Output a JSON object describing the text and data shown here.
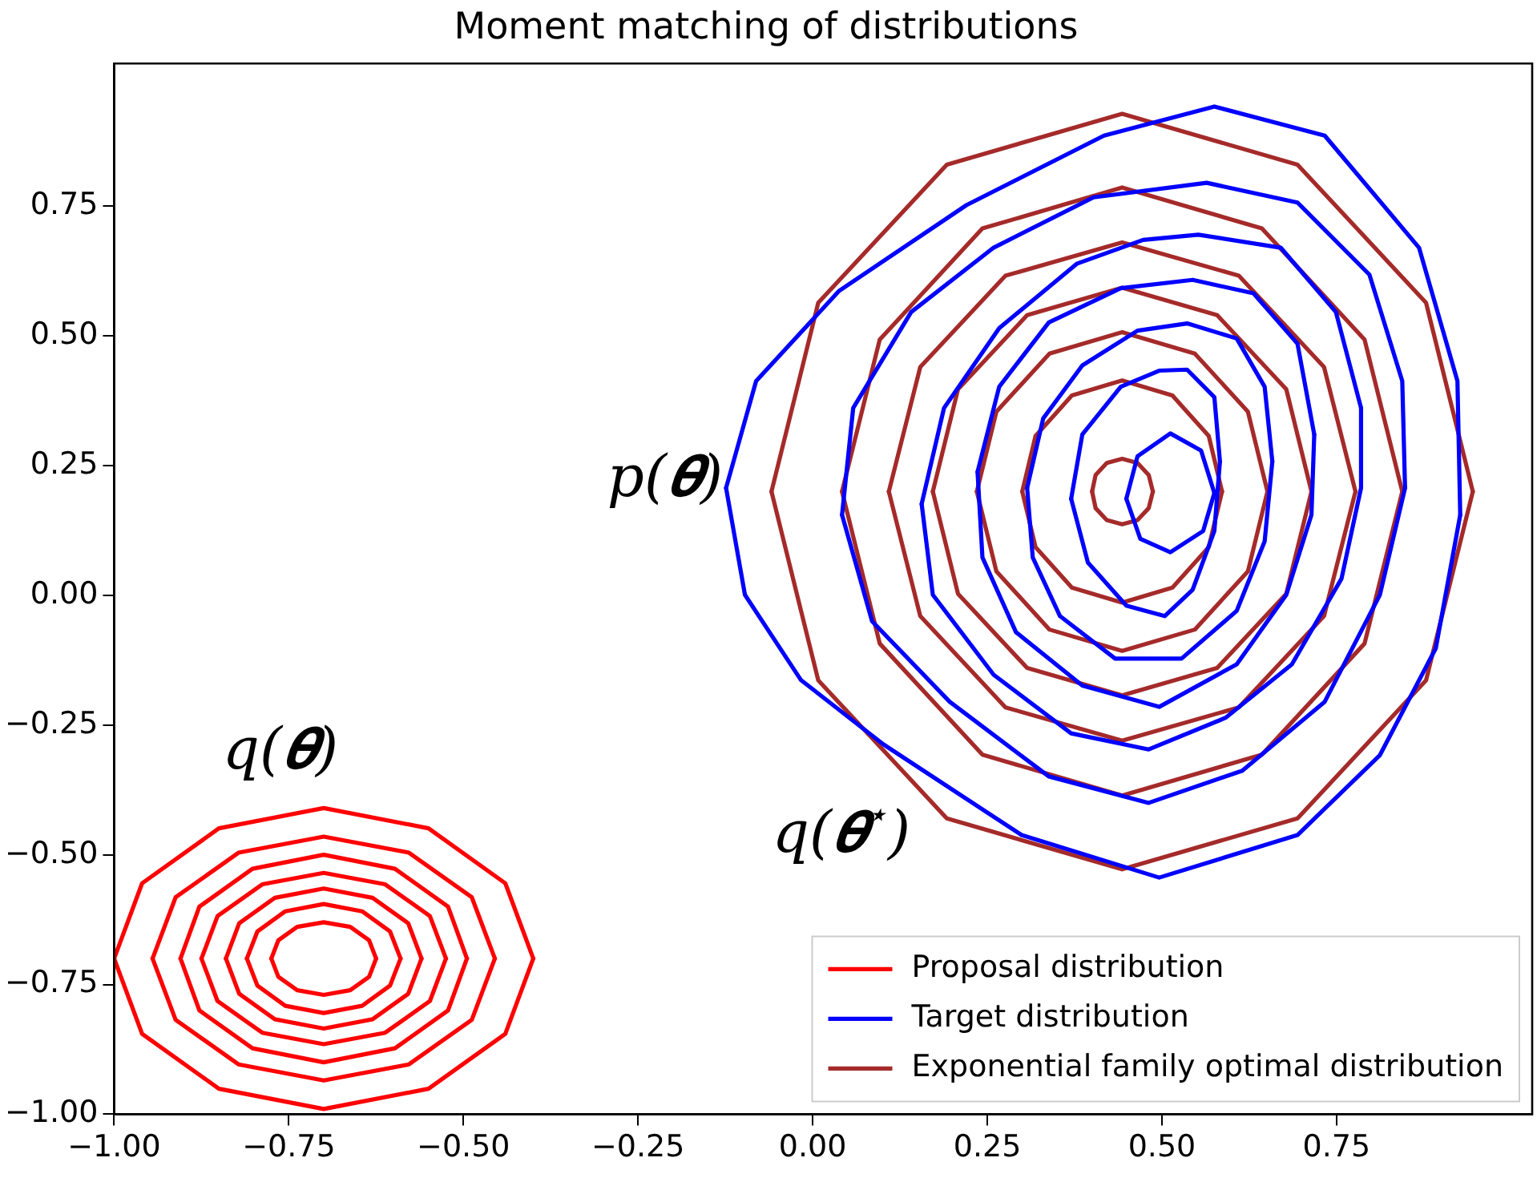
{
  "chart_data": {
    "type": "line",
    "title": "Moment matching of distributions",
    "xlim": [
      -1.0,
      1.03
    ],
    "ylim": [
      -1.0,
      1.025
    ],
    "xticks": [
      {
        "value": -1,
        "label": "−1.00"
      },
      {
        "value": -0.75,
        "label": "−0.75"
      },
      {
        "value": -0.5,
        "label": "−0.50"
      },
      {
        "value": -0.25,
        "label": "−0.25"
      },
      {
        "value": 0,
        "label": "0.00"
      },
      {
        "value": 0.25,
        "label": "0.25"
      },
      {
        "value": 0.5,
        "label": "0.50"
      },
      {
        "value": 0.75,
        "label": "0.75"
      }
    ],
    "yticks": [
      {
        "value": -1,
        "label": "−1.00"
      },
      {
        "value": -0.75,
        "label": "−0.75"
      },
      {
        "value": -0.5,
        "label": "−0.50"
      },
      {
        "value": -0.25,
        "label": "−0.25"
      },
      {
        "value": 0,
        "label": "0.00"
      },
      {
        "value": 0.25,
        "label": "0.25"
      },
      {
        "value": 0.5,
        "label": "0.50"
      },
      {
        "value": 0.75,
        "label": "0.75"
      }
    ],
    "legend": "bottom right",
    "grid": false,
    "line_style": "solid",
    "annotations": [
      "p(𝜽)",
      "q(𝜽)",
      "q(𝜽$^{⋆}$)"
    ],
    "series": [
      {
        "name": "Proposal distribution",
        "color": "#ff0000",
        "x": [
          -0.4,
          -0.44,
          -0.55,
          -0.7,
          -0.85,
          -0.96,
          -1.0,
          -0.96,
          -0.85,
          -0.7,
          -0.55,
          -0.44,
          -0.4
        ],
        "values": [
          -0.7,
          -0.555,
          -0.449,
          -0.41,
          -0.449,
          -0.555,
          -0.7,
          -0.845,
          -0.951,
          -0.99,
          -0.951,
          -0.845,
          -0.7
        ]
      },
      {
        "color": "#ff0000",
        "x": [
          -0.455,
          -0.488,
          -0.578,
          -0.7,
          -0.822,
          -0.912,
          -0.945,
          -0.912,
          -0.822,
          -0.7,
          -0.578,
          -0.488,
          -0.455
        ],
        "values": [
          -0.7,
          -0.582,
          -0.496,
          -0.465,
          -0.496,
          -0.582,
          -0.7,
          -0.818,
          -0.904,
          -0.935,
          -0.904,
          -0.818,
          -0.7
        ]
      },
      {
        "color": "#ff0000",
        "x": [
          -0.495,
          -0.522,
          -0.598,
          -0.7,
          -0.802,
          -0.878,
          -0.905,
          -0.878,
          -0.802,
          -0.7,
          -0.598,
          -0.522,
          -0.495
        ],
        "values": [
          -0.7,
          -0.6,
          -0.527,
          -0.5,
          -0.527,
          -0.6,
          -0.7,
          -0.8,
          -0.873,
          -0.9,
          -0.873,
          -0.8,
          -0.7
        ]
      },
      {
        "color": "#ff0000",
        "x": [
          -0.525,
          -0.548,
          -0.612,
          -0.7,
          -0.788,
          -0.852,
          -0.875,
          -0.852,
          -0.788,
          -0.7,
          -0.612,
          -0.548,
          -0.525
        ],
        "values": [
          -0.7,
          -0.618,
          -0.557,
          -0.535,
          -0.557,
          -0.618,
          -0.7,
          -0.782,
          -0.843,
          -0.865,
          -0.843,
          -0.782,
          -0.7
        ]
      },
      {
        "color": "#ff0000",
        "x": [
          -0.56,
          -0.579,
          -0.63,
          -0.7,
          -0.77,
          -0.821,
          -0.84,
          -0.821,
          -0.77,
          -0.7,
          -0.63,
          -0.579,
          -0.56
        ],
        "values": [
          -0.7,
          -0.632,
          -0.583,
          -0.565,
          -0.583,
          -0.632,
          -0.7,
          -0.768,
          -0.817,
          -0.835,
          -0.817,
          -0.768,
          -0.7
        ]
      },
      {
        "color": "#ff0000",
        "x": [
          -0.59,
          -0.605,
          -0.645,
          -0.7,
          -0.755,
          -0.795,
          -0.81,
          -0.795,
          -0.755,
          -0.7,
          -0.645,
          -0.605,
          -0.59
        ],
        "values": [
          -0.7,
          -0.648,
          -0.609,
          -0.595,
          -0.609,
          -0.648,
          -0.7,
          -0.752,
          -0.791,
          -0.805,
          -0.791,
          -0.752,
          -0.7
        ]
      },
      {
        "color": "#ff0000",
        "x": [
          -0.625,
          -0.635,
          -0.662,
          -0.7,
          -0.738,
          -0.765,
          -0.775,
          -0.765,
          -0.738,
          -0.7,
          -0.662,
          -0.635,
          -0.625
        ],
        "values": [
          -0.7,
          -0.665,
          -0.639,
          -0.63,
          -0.639,
          -0.665,
          -0.7,
          -0.735,
          -0.761,
          -0.77,
          -0.761,
          -0.735,
          -0.7
        ]
      },
      {
        "name": "Target distribution",
        "color": "#0000ff",
        "x": [
          0.575,
          0.733,
          0.868,
          0.923,
          0.927,
          0.892,
          0.812,
          0.694,
          0.496,
          0.299,
          0.101,
          -0.017,
          -0.097,
          -0.124,
          -0.081,
          0.038,
          0.22,
          0.417,
          0.575
        ],
        "values": [
          0.942,
          0.886,
          0.67,
          0.413,
          0.155,
          -0.102,
          -0.308,
          -0.462,
          -0.544,
          -0.462,
          -0.287,
          -0.163,
          0.001,
          0.207,
          0.413,
          0.587,
          0.752,
          0.886,
          0.942
        ]
      },
      {
        "color": "#0000ff",
        "x": [
          0.564,
          0.694,
          0.797,
          0.844,
          0.848,
          0.812,
          0.733,
          0.615,
          0.481,
          0.338,
          0.196,
          0.085,
          0.042,
          0.058,
          0.141,
          0.259,
          0.402,
          0.564
        ],
        "values": [
          0.795,
          0.757,
          0.618,
          0.413,
          0.207,
          0.001,
          -0.205,
          -0.338,
          -0.4,
          -0.349,
          -0.205,
          -0.05,
          0.155,
          0.361,
          0.546,
          0.67,
          0.767,
          0.795
        ]
      },
      {
        "color": "#0000ff",
        "x": [
          0.552,
          0.67,
          0.749,
          0.785,
          0.785,
          0.757,
          0.686,
          0.591,
          0.481,
          0.37,
          0.259,
          0.172,
          0.156,
          0.188,
          0.267,
          0.378,
          0.473,
          0.552
        ],
        "values": [
          0.695,
          0.67,
          0.546,
          0.361,
          0.207,
          0.032,
          -0.133,
          -0.236,
          -0.297,
          -0.266,
          -0.153,
          0.001,
          0.176,
          0.361,
          0.515,
          0.639,
          0.685,
          0.695
        ]
      },
      {
        "color": "#0000ff",
        "x": [
          0.544,
          0.631,
          0.694,
          0.718,
          0.714,
          0.678,
          0.607,
          0.496,
          0.386,
          0.291,
          0.243,
          0.236,
          0.267,
          0.338,
          0.441,
          0.544
        ],
        "values": [
          0.608,
          0.582,
          0.485,
          0.31,
          0.155,
          0.001,
          -0.133,
          -0.215,
          -0.174,
          -0.071,
          0.073,
          0.238,
          0.402,
          0.526,
          0.592,
          0.608
        ]
      },
      {
        "color": "#0000ff",
        "x": [
          0.536,
          0.607,
          0.647,
          0.658,
          0.647,
          0.607,
          0.528,
          0.433,
          0.354,
          0.315,
          0.307,
          0.33,
          0.386,
          0.465,
          0.536
        ],
        "values": [
          0.524,
          0.495,
          0.402,
          0.258,
          0.104,
          -0.03,
          -0.122,
          -0.122,
          -0.04,
          0.073,
          0.207,
          0.341,
          0.443,
          0.51,
          0.524
        ]
      },
      {
        "color": "#0000ff",
        "x": [
          0.536,
          0.575,
          0.583,
          0.575,
          0.544,
          0.504,
          0.449,
          0.394,
          0.37,
          0.386,
          0.441,
          0.496,
          0.536
        ],
        "values": [
          0.435,
          0.382,
          0.258,
          0.124,
          0.011,
          -0.04,
          -0.02,
          0.063,
          0.186,
          0.31,
          0.402,
          0.433,
          0.435
        ]
      },
      {
        "color": "#0000ff",
        "x": [
          0.512,
          0.556,
          0.575,
          0.559,
          0.512,
          0.469,
          0.449,
          0.465,
          0.512
        ],
        "values": [
          0.312,
          0.279,
          0.197,
          0.124,
          0.083,
          0.109,
          0.186,
          0.268,
          0.312
        ]
      },
      {
        "name": "Exponential family optimal distribution",
        "color": "#a52a2a",
        "x": [
          0.945,
          0.878,
          0.694,
          0.443,
          0.192,
          0.008,
          -0.059,
          0.008,
          0.192,
          0.443,
          0.694,
          0.878,
          0.945
        ],
        "values": [
          0.2,
          0.564,
          0.83,
          0.928,
          0.83,
          0.564,
          0.2,
          -0.164,
          -0.43,
          -0.528,
          -0.43,
          -0.164,
          0.2
        ]
      },
      {
        "color": "#a52a2a",
        "x": [
          0.844,
          0.79,
          0.643,
          0.443,
          0.243,
          0.096,
          0.042,
          0.096,
          0.243,
          0.443,
          0.643,
          0.79,
          0.844
        ],
        "values": [
          0.2,
          0.493,
          0.707,
          0.786,
          0.707,
          0.493,
          0.2,
          -0.093,
          -0.307,
          -0.386,
          -0.307,
          -0.093,
          0.2
        ]
      },
      {
        "color": "#a52a2a",
        "x": [
          0.777,
          0.732,
          0.61,
          0.443,
          0.276,
          0.154,
          0.109,
          0.154,
          0.276,
          0.443,
          0.61,
          0.732,
          0.777
        ],
        "values": [
          0.2,
          0.44,
          0.616,
          0.68,
          0.616,
          0.44,
          0.2,
          -0.04,
          -0.216,
          -0.28,
          -0.216,
          -0.04,
          0.2
        ]
      },
      {
        "color": "#a52a2a",
        "x": [
          0.714,
          0.678,
          0.579,
          0.443,
          0.307,
          0.208,
          0.172,
          0.208,
          0.307,
          0.443,
          0.579,
          0.678,
          0.714
        ],
        "values": [
          0.2,
          0.397,
          0.54,
          0.593,
          0.54,
          0.397,
          0.2,
          0.003,
          -0.14,
          -0.193,
          -0.14,
          0.003,
          0.2
        ]
      },
      {
        "color": "#a52a2a",
        "x": [
          0.651,
          0.623,
          0.547,
          0.443,
          0.339,
          0.263,
          0.235,
          0.263,
          0.339,
          0.443,
          0.547,
          0.623,
          0.651
        ],
        "values": [
          0.2,
          0.354,
          0.466,
          0.507,
          0.466,
          0.354,
          0.2,
          0.046,
          -0.066,
          -0.107,
          -0.066,
          0.046,
          0.2
        ]
      },
      {
        "color": "#a52a2a",
        "x": [
          0.586,
          0.567,
          0.515,
          0.443,
          0.371,
          0.319,
          0.3,
          0.319,
          0.371,
          0.443,
          0.515,
          0.567,
          0.586
        ],
        "values": [
          0.2,
          0.307,
          0.385,
          0.414,
          0.385,
          0.307,
          0.2,
          0.093,
          0.015,
          -0.014,
          0.015,
          0.093,
          0.2
        ]
      },
      {
        "color": "#a52a2a",
        "x": [
          0.487,
          0.481,
          0.465,
          0.443,
          0.421,
          0.405,
          0.4,
          0.405,
          0.421,
          0.443,
          0.465,
          0.481,
          0.487
        ],
        "values": [
          0.2,
          0.232,
          0.255,
          0.263,
          0.255,
          0.232,
          0.2,
          0.168,
          0.145,
          0.137,
          0.145,
          0.168,
          0.2
        ]
      }
    ]
  }
}
